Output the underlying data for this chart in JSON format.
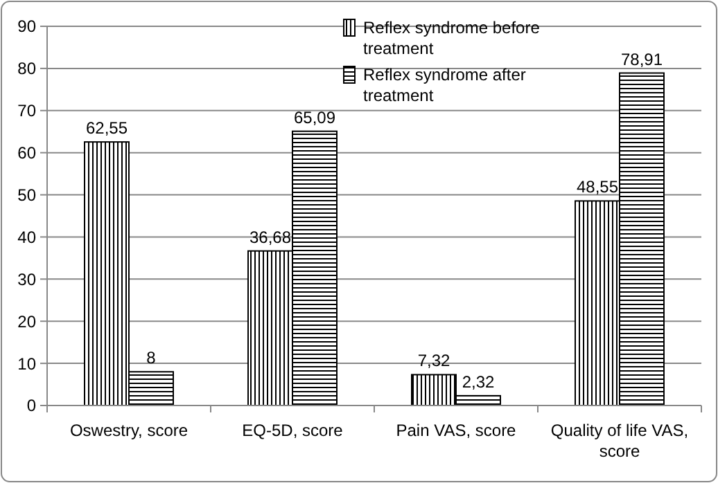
{
  "chart_data": {
    "type": "bar",
    "categories": [
      "Oswestry, score",
      "EQ-5D, score",
      "Pain VAS, score",
      "Quality of life VAS, score"
    ],
    "series": [
      {
        "name": "Reflex syndrome before treatment",
        "color": "#000000",
        "values": [
          62.55,
          36.68,
          7.32,
          48.55
        ],
        "value_labels": [
          "62,55",
          "36,68",
          "7,32",
          "48,55"
        ]
      },
      {
        "name": "Reflex syndrome after treatment",
        "color": "#000000",
        "values": [
          8,
          65.09,
          2.32,
          78.91
        ],
        "value_labels": [
          "8",
          "65,09",
          "2,32",
          "78,91"
        ]
      }
    ],
    "ylim": [
      0,
      90
    ],
    "yticks": [
      0,
      10,
      20,
      30,
      40,
      50,
      60,
      70,
      80,
      90
    ],
    "grid": "y",
    "legend": "top"
  }
}
